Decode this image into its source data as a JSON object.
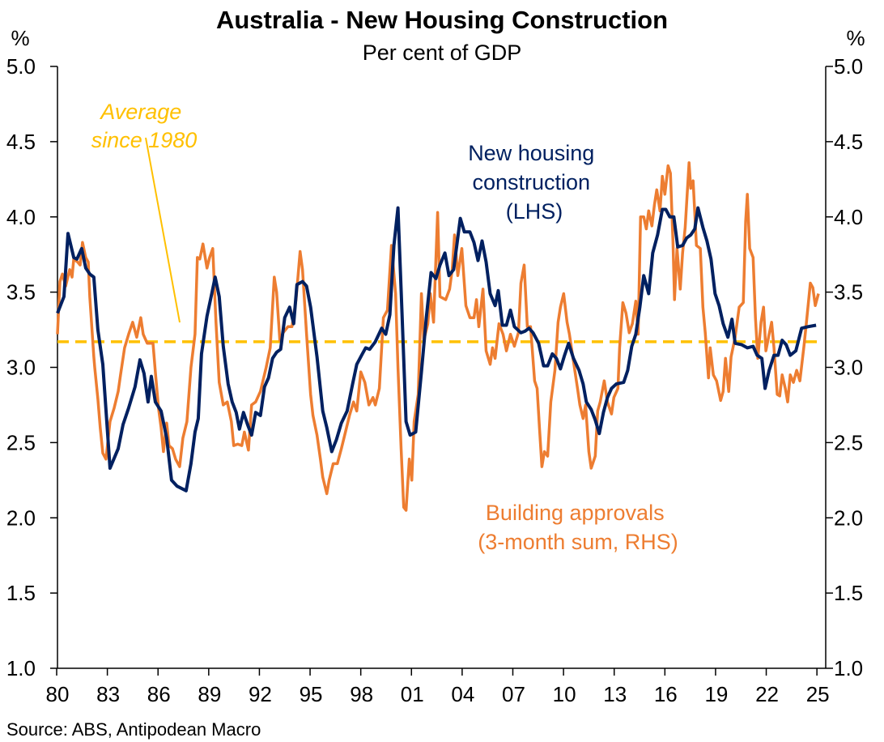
{
  "chart_data": {
    "type": "line",
    "title": "Australia - New Housing Construction",
    "subtitle": "Per cent of GDP",
    "ylabel_left": "%",
    "ylabel_right": "%",
    "ylim": [
      1.0,
      5.0
    ],
    "yticks": [
      "1.0",
      "1.5",
      "2.0",
      "2.5",
      "3.0",
      "3.5",
      "4.0",
      "4.5",
      "5.0"
    ],
    "xlim": [
      1980,
      2025.5
    ],
    "xticks": [
      {
        "year": 1980,
        "label": "80"
      },
      {
        "year": 1983,
        "label": "83"
      },
      {
        "year": 1986,
        "label": "86"
      },
      {
        "year": 1989,
        "label": "89"
      },
      {
        "year": 1992,
        "label": "92"
      },
      {
        "year": 1995,
        "label": "95"
      },
      {
        "year": 1998,
        "label": "98"
      },
      {
        "year": 2001,
        "label": "01"
      },
      {
        "year": 2004,
        "label": "04"
      },
      {
        "year": 2007,
        "label": "07"
      },
      {
        "year": 2010,
        "label": "10"
      },
      {
        "year": 2013,
        "label": "13"
      },
      {
        "year": 2016,
        "label": "16"
      },
      {
        "year": 2019,
        "label": "19"
      },
      {
        "year": 2022,
        "label": "22"
      },
      {
        "year": 2025,
        "label": "25"
      }
    ],
    "grid": false,
    "source": "Source: ABS, Antipodean Macro",
    "average": {
      "value": 3.17,
      "label_lines": [
        "Average",
        "since 1980"
      ],
      "color": "#FFC000"
    },
    "series": [
      {
        "name": "Building approvals (3-month sum, RHS)",
        "label_lines": [
          "Building approvals",
          "(3-month sum, RHS)"
        ],
        "axis": "right",
        "color": "#ED7D31",
        "x": [
          1980.05,
          1980.19,
          1980.34,
          1980.53,
          1980.77,
          1980.91,
          1981.01,
          1981.24,
          1981.39,
          1981.53,
          1981.72,
          1981.87,
          1981.96,
          1982.2,
          1982.25,
          1982.44,
          1982.58,
          1982.73,
          1982.92,
          1983.16,
          1983.4,
          1983.64,
          1983.78,
          1984.02,
          1984.26,
          1984.5,
          1984.74,
          1984.98,
          1985.12,
          1985.36,
          1985.7,
          1985.84,
          1986.03,
          1986.18,
          1986.32,
          1986.51,
          1986.65,
          1986.85,
          1987.04,
          1987.28,
          1987.47,
          1987.71,
          1987.95,
          1988.19,
          1988.33,
          1988.47,
          1988.66,
          1988.9,
          1989.05,
          1989.24,
          1989.43,
          1989.62,
          1989.86,
          1990.1,
          1990.34,
          1990.48,
          1990.72,
          1990.96,
          1991.11,
          1991.35,
          1991.54,
          1991.78,
          1992.06,
          1992.4,
          1992.64,
          1992.88,
          1993.02,
          1993.21,
          1993.4,
          1993.69,
          1993.93,
          1994.17,
          1994.41,
          1994.55,
          1994.79,
          1995.03,
          1995.17,
          1995.41,
          1995.61,
          1995.75,
          1995.99,
          1996.13,
          1996.37,
          1996.61,
          1996.85,
          1997.09,
          1997.33,
          1997.57,
          1997.76,
          1998.0,
          1998.24,
          1998.48,
          1998.72,
          1998.86,
          1999.1,
          1999.34,
          1999.58,
          1999.82,
          2000.06,
          2000.2,
          2000.39,
          2000.54,
          2000.68,
          2000.87,
          2001.02,
          2001.16,
          2001.4,
          2001.59,
          2001.73,
          2001.97,
          2002.12,
          2002.31,
          2002.55,
          2002.69,
          2003.03,
          2003.26,
          2003.41,
          2003.55,
          2003.74,
          2003.98,
          2004.22,
          2004.46,
          2004.7,
          2004.85,
          2004.99,
          2005.23,
          2005.42,
          2005.66,
          2005.8,
          2005.95,
          2006.18,
          2006.42,
          2006.62,
          2006.86,
          2007.09,
          2007.33,
          2007.48,
          2007.67,
          2007.86,
          2008.05,
          2008.29,
          2008.44,
          2008.58,
          2008.72,
          2008.87,
          2009.06,
          2009.25,
          2009.49,
          2009.68,
          2009.82,
          2010.01,
          2010.21,
          2010.35,
          2010.59,
          2010.83,
          2010.97,
          2011.16,
          2011.31,
          2011.5,
          2011.64,
          2011.88,
          2012.02,
          2012.17,
          2012.41,
          2012.6,
          2012.84,
          2012.98,
          2013.22,
          2013.32,
          2013.51,
          2013.7,
          2013.89,
          2014.08,
          2014.28,
          2014.42,
          2014.56,
          2014.75,
          2014.9,
          2015.04,
          2015.23,
          2015.38,
          2015.52,
          2015.71,
          2015.85,
          2016.0,
          2016.19,
          2016.33,
          2016.48,
          2016.57,
          2016.72,
          2016.91,
          2017.05,
          2017.2,
          2017.43,
          2017.53,
          2017.67,
          2017.87,
          2018.1,
          2018.25,
          2018.39,
          2018.58,
          2018.68,
          2018.87,
          2019.06,
          2019.3,
          2019.45,
          2019.59,
          2019.78,
          2019.92,
          2020.16,
          2020.4,
          2020.64,
          2020.78,
          2020.88,
          2021.02,
          2021.22,
          2021.36,
          2021.5,
          2021.69,
          2021.84,
          2021.98,
          2022.17,
          2022.32,
          2022.46,
          2022.65,
          2022.8,
          2022.94,
          2023.13,
          2023.27,
          2023.42,
          2023.61,
          2023.8,
          2023.99,
          2024.23,
          2024.38,
          2024.61,
          2024.76,
          2024.9,
          2025.09
        ],
        "y": [
          3.22,
          3.57,
          3.62,
          3.54,
          3.65,
          3.6,
          3.72,
          3.7,
          3.68,
          3.83,
          3.73,
          3.7,
          3.47,
          3.07,
          3.0,
          2.79,
          2.6,
          2.43,
          2.39,
          2.64,
          2.73,
          2.84,
          2.95,
          3.13,
          3.22,
          3.3,
          3.2,
          3.33,
          3.22,
          3.16,
          3.16,
          2.97,
          2.73,
          2.6,
          2.44,
          2.63,
          2.48,
          2.46,
          2.39,
          2.34,
          2.53,
          2.64,
          3.0,
          3.22,
          3.73,
          3.72,
          3.82,
          3.66,
          3.73,
          3.79,
          3.3,
          2.9,
          2.75,
          2.77,
          2.64,
          2.48,
          2.49,
          2.48,
          2.57,
          2.45,
          2.75,
          2.77,
          2.84,
          3.0,
          3.13,
          3.6,
          3.5,
          3.18,
          3.23,
          3.27,
          3.27,
          3.45,
          3.77,
          3.65,
          3.22,
          2.82,
          2.68,
          2.55,
          2.39,
          2.27,
          2.16,
          2.25,
          2.36,
          2.36,
          2.46,
          2.57,
          2.68,
          2.77,
          2.71,
          2.97,
          2.9,
          2.75,
          2.8,
          2.75,
          2.86,
          3.33,
          3.38,
          3.81,
          3.49,
          3.0,
          2.46,
          2.07,
          2.05,
          2.39,
          2.25,
          2.64,
          2.82,
          3.49,
          3.18,
          3.29,
          3.49,
          3.3,
          4.03,
          3.47,
          3.45,
          3.52,
          3.65,
          3.88,
          3.61,
          3.79,
          3.41,
          3.33,
          3.33,
          3.45,
          3.27,
          3.52,
          3.11,
          3.02,
          3.13,
          3.06,
          3.29,
          3.22,
          3.11,
          3.22,
          3.14,
          3.23,
          3.56,
          3.68,
          3.27,
          3.27,
          2.91,
          2.86,
          2.59,
          2.34,
          2.44,
          2.41,
          2.77,
          2.98,
          3.3,
          3.4,
          3.49,
          3.3,
          3.22,
          3.04,
          2.86,
          2.75,
          2.66,
          2.75,
          2.44,
          2.33,
          2.41,
          2.71,
          2.77,
          2.91,
          2.77,
          2.69,
          2.8,
          2.86,
          3.13,
          3.43,
          3.36,
          3.23,
          3.29,
          3.44,
          3.22,
          4.0,
          4.0,
          3.92,
          4.04,
          3.94,
          4.08,
          4.18,
          4.04,
          4.27,
          4.15,
          4.34,
          4.29,
          3.84,
          3.45,
          3.79,
          3.52,
          3.76,
          3.93,
          4.36,
          4.19,
          4.24,
          3.81,
          3.79,
          3.4,
          3.23,
          2.93,
          3.13,
          2.95,
          2.91,
          2.78,
          2.84,
          3.06,
          2.84,
          3.07,
          3.2,
          3.4,
          3.43,
          3.97,
          4.15,
          3.79,
          3.73,
          3.33,
          3.06,
          3.3,
          3.4,
          3.11,
          3.22,
          3.3,
          3.13,
          2.82,
          2.81,
          2.95,
          2.86,
          2.77,
          2.95,
          2.9,
          2.98,
          2.91,
          3.14,
          3.3,
          3.56,
          3.53,
          3.41,
          3.49
        ]
      },
      {
        "name": "New housing construction (LHS)",
        "label_lines": [
          "New housing",
          "construction",
          "(LHS)"
        ],
        "axis": "left",
        "color": "#002060",
        "x": [
          1980.05,
          1980.43,
          1980.67,
          1981.01,
          1981.2,
          1981.48,
          1981.72,
          1981.96,
          1982.2,
          1982.44,
          1982.73,
          1983.16,
          1983.64,
          1983.93,
          1984.26,
          1984.64,
          1984.93,
          1985.17,
          1985.41,
          1985.6,
          1985.84,
          1986.18,
          1986.51,
          1986.8,
          1987.13,
          1987.66,
          1987.95,
          1988.19,
          1988.38,
          1988.57,
          1988.9,
          1989.14,
          1989.38,
          1989.62,
          1989.86,
          1990.15,
          1990.39,
          1990.63,
          1990.82,
          1991.06,
          1991.3,
          1991.54,
          1991.78,
          1992.06,
          1992.3,
          1992.54,
          1992.78,
          1993.02,
          1993.26,
          1993.5,
          1993.79,
          1994.03,
          1994.22,
          1994.55,
          1994.79,
          1995.03,
          1995.41,
          1995.75,
          1995.99,
          1996.28,
          1996.56,
          1996.85,
          1997.19,
          1997.52,
          1997.76,
          1998.05,
          1998.29,
          1998.53,
          1998.86,
          1999.24,
          1999.48,
          1999.72,
          1999.96,
          2000.2,
          2000.44,
          2000.68,
          2000.92,
          2001.25,
          2001.59,
          2001.88,
          2002.16,
          2002.45,
          2002.69,
          2002.98,
          2003.22,
          2003.5,
          2003.89,
          2004.13,
          2004.46,
          2004.7,
          2004.94,
          2005.18,
          2005.42,
          2005.66,
          2005.95,
          2006.14,
          2006.38,
          2006.62,
          2006.86,
          2007.09,
          2007.48,
          2007.72,
          2007.96,
          2008.2,
          2008.53,
          2008.82,
          2009.06,
          2009.34,
          2009.58,
          2009.82,
          2010.06,
          2010.3,
          2010.59,
          2010.92,
          2011.16,
          2011.35,
          2011.64,
          2011.88,
          2012.12,
          2012.36,
          2012.6,
          2012.84,
          2013.13,
          2013.56,
          2013.8,
          2014.04,
          2014.28,
          2014.52,
          2014.75,
          2015.04,
          2015.28,
          2015.57,
          2015.85,
          2016.05,
          2016.29,
          2016.53,
          2016.76,
          2017.05,
          2017.29,
          2017.53,
          2017.77,
          2017.96,
          2018.25,
          2018.49,
          2018.73,
          2018.97,
          2019.21,
          2019.45,
          2019.73,
          2019.97,
          2020.16,
          2020.55,
          2020.88,
          2021.22,
          2021.46,
          2021.74,
          2021.93,
          2022.17,
          2022.46,
          2022.7,
          2022.94,
          2023.18,
          2023.42,
          2023.75,
          2024.09,
          2024.47,
          2024.95
        ],
        "y": [
          3.36,
          3.47,
          3.89,
          3.73,
          3.72,
          3.79,
          3.66,
          3.62,
          3.6,
          3.25,
          3.02,
          2.33,
          2.46,
          2.62,
          2.73,
          2.87,
          3.05,
          2.96,
          2.77,
          2.94,
          2.77,
          2.71,
          2.53,
          2.25,
          2.21,
          2.18,
          2.36,
          2.57,
          2.66,
          3.09,
          3.34,
          3.47,
          3.6,
          3.47,
          3.14,
          2.89,
          2.77,
          2.7,
          2.59,
          2.7,
          2.62,
          2.55,
          2.7,
          2.68,
          2.87,
          2.93,
          3.06,
          3.1,
          3.12,
          3.33,
          3.4,
          3.29,
          3.55,
          3.57,
          3.54,
          3.4,
          3.07,
          2.71,
          2.6,
          2.44,
          2.52,
          2.63,
          2.71,
          2.89,
          3.02,
          3.08,
          3.13,
          3.12,
          3.17,
          3.26,
          3.22,
          3.35,
          3.81,
          4.06,
          3.36,
          2.64,
          2.55,
          2.57,
          2.97,
          3.33,
          3.63,
          3.59,
          3.68,
          3.76,
          3.61,
          3.65,
          3.99,
          3.9,
          3.9,
          3.83,
          3.71,
          3.84,
          3.7,
          3.49,
          3.41,
          3.51,
          3.28,
          3.28,
          3.38,
          3.27,
          3.23,
          3.24,
          3.26,
          3.23,
          3.16,
          3.01,
          3.01,
          3.09,
          3.06,
          2.99,
          3.08,
          3.16,
          3.06,
          2.98,
          2.89,
          2.77,
          2.72,
          2.65,
          2.56,
          2.7,
          2.8,
          2.86,
          2.89,
          2.9,
          2.98,
          3.14,
          3.22,
          3.4,
          3.61,
          3.49,
          3.76,
          3.88,
          4.05,
          4.05,
          4.0,
          4.0,
          3.8,
          3.81,
          3.86,
          3.88,
          3.92,
          4.06,
          3.93,
          3.84,
          3.72,
          3.49,
          3.41,
          3.29,
          3.2,
          3.32,
          3.16,
          3.15,
          3.13,
          3.14,
          3.08,
          3.06,
          2.86,
          2.98,
          3.08,
          3.08,
          3.18,
          3.15,
          3.08,
          3.11,
          3.26,
          3.27,
          3.28
        ]
      }
    ]
  }
}
